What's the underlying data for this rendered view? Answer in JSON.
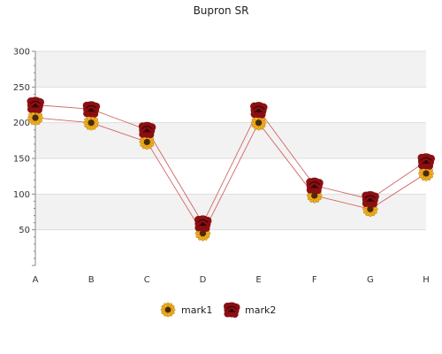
{
  "chart_data": {
    "type": "line",
    "title": "Bupron SR",
    "xlabel": "",
    "ylabel": "",
    "categories": [
      "A",
      "B",
      "C",
      "D",
      "E",
      "F",
      "G",
      "H"
    ],
    "ylim": [
      0,
      300
    ],
    "yticks": [
      50,
      100,
      150,
      200,
      250,
      300
    ],
    "grid": true,
    "legend_position": "bottom",
    "series": [
      {
        "name": "mark1",
        "values": [
          207,
          200,
          173,
          45,
          200,
          98,
          79,
          129
        ],
        "line_color": "#d26464",
        "marker": "sunflower-icon"
      },
      {
        "name": "mark2",
        "values": [
          225,
          219,
          190,
          59,
          218,
          112,
          93,
          146
        ],
        "line_color": "#d26464",
        "marker": "rose-icon"
      }
    ],
    "colors": {
      "band": "#f2f2f2",
      "grid": "#dddddd",
      "axis": "#888888",
      "petal": "#f2b01e",
      "petal_stroke": "#b07a10",
      "center": "#4a2a0a",
      "rose": "#8b0f12",
      "rose_dark": "#3a0406"
    }
  }
}
